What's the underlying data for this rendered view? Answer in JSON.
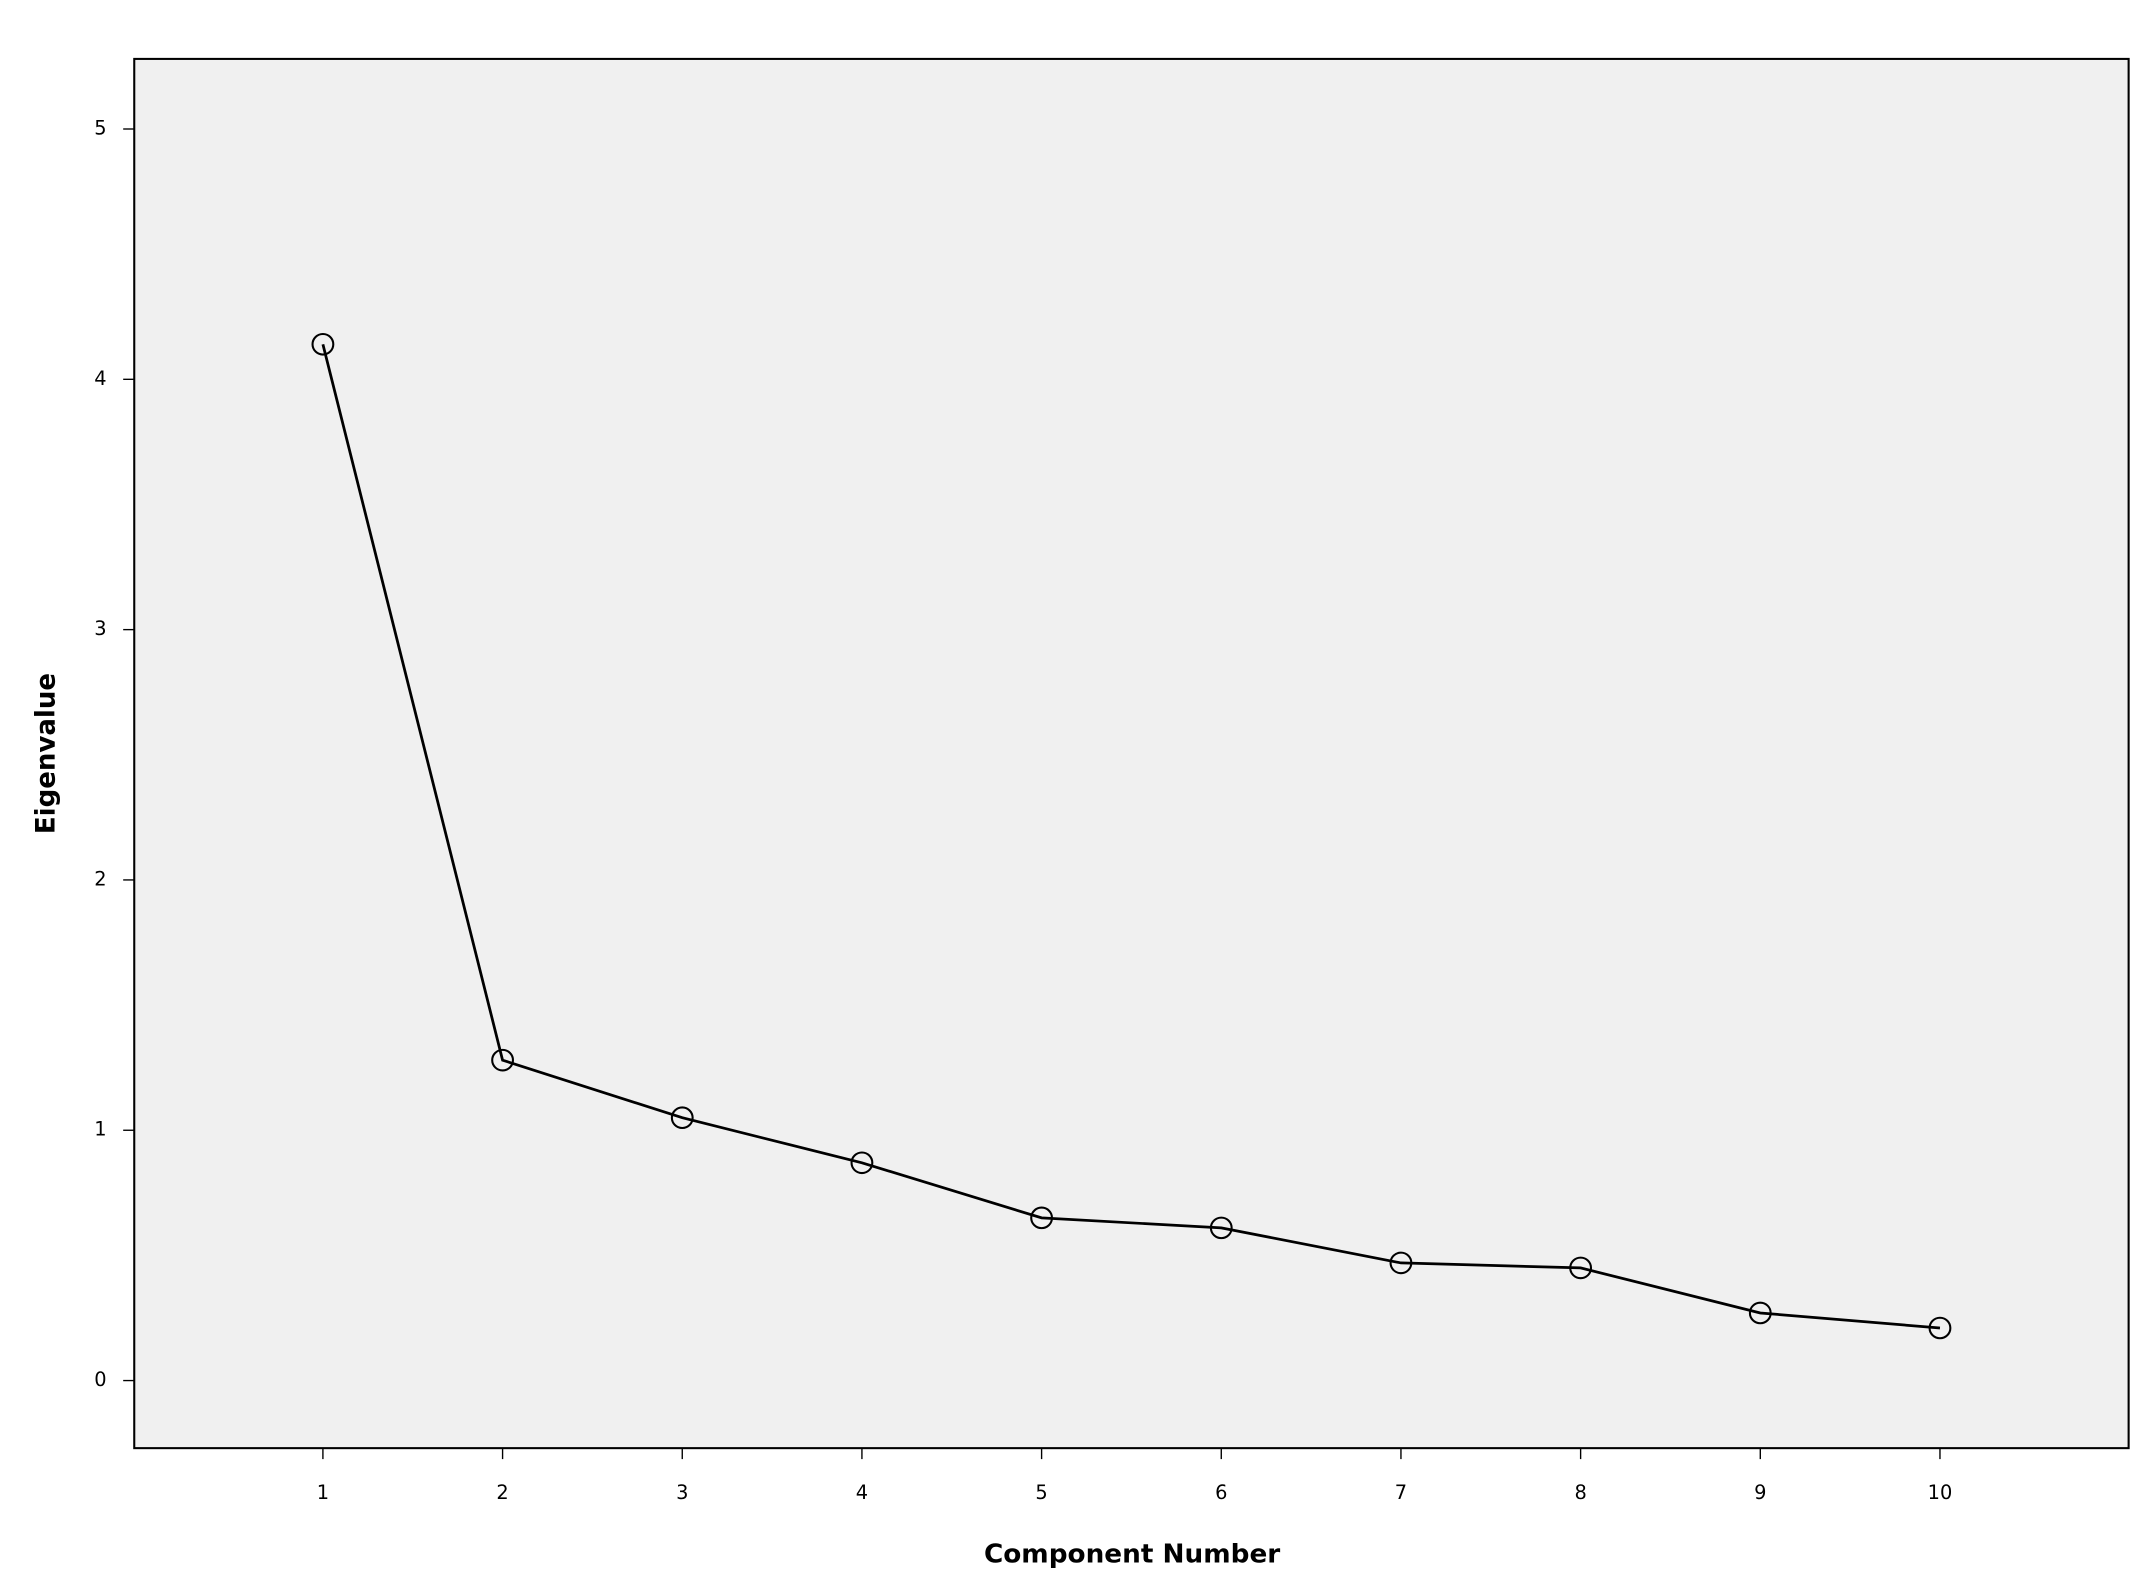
{
  "chart_data": {
    "type": "line",
    "xlabel": "Component Number",
    "ylabel": "Eigenvalue",
    "x": [
      1,
      2,
      3,
      4,
      5,
      6,
      7,
      8,
      9,
      10
    ],
    "values": [
      4.14,
      1.28,
      1.05,
      0.87,
      0.65,
      0.61,
      0.47,
      0.45,
      0.27,
      0.21
    ],
    "color": "#000000",
    "background": "#f0f0f0",
    "xlim": [
      -0.05,
      11.05
    ],
    "ylim": [
      -0.27,
      5.28
    ],
    "xticks": [
      1,
      2,
      3,
      4,
      5,
      6,
      7,
      8,
      9,
      10
    ],
    "yticks": [
      0,
      1,
      2,
      3,
      4,
      5
    ],
    "grid": false
  }
}
